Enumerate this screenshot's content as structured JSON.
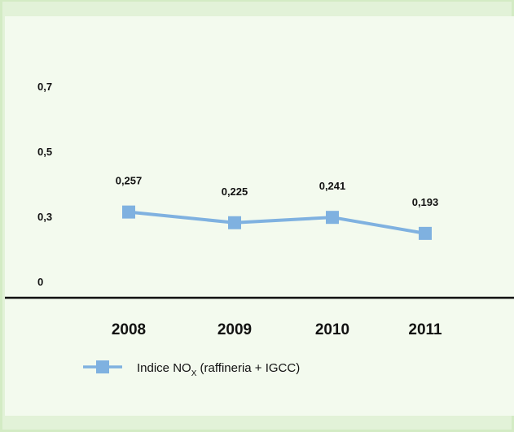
{
  "colors": {
    "background": "#e2f2d8",
    "panel": "#f3faee",
    "series": "#7fb1e0",
    "axis": "#111111"
  },
  "chart_data": {
    "type": "line",
    "categories": [
      "2008",
      "2009",
      "2010",
      "2011"
    ],
    "series": [
      {
        "name_prefix": "Indice NO",
        "name_sub": "X",
        "name_suffix": " (raffineria + IGCC)",
        "values": [
          0.257,
          0.225,
          0.241,
          0.193
        ],
        "value_labels": [
          "0,257",
          "0,225",
          "0,241",
          "0,193"
        ],
        "marker": "square"
      }
    ],
    "yticks": [
      {
        "value": 0,
        "label": "0"
      },
      {
        "value": 0.3,
        "label": "0,3"
      },
      {
        "value": 0.5,
        "label": "0,5"
      },
      {
        "value": 0.7,
        "label": "0,7"
      }
    ],
    "ylim": [
      0,
      0.9
    ],
    "grid": false,
    "legend_position": "bottom-left"
  }
}
